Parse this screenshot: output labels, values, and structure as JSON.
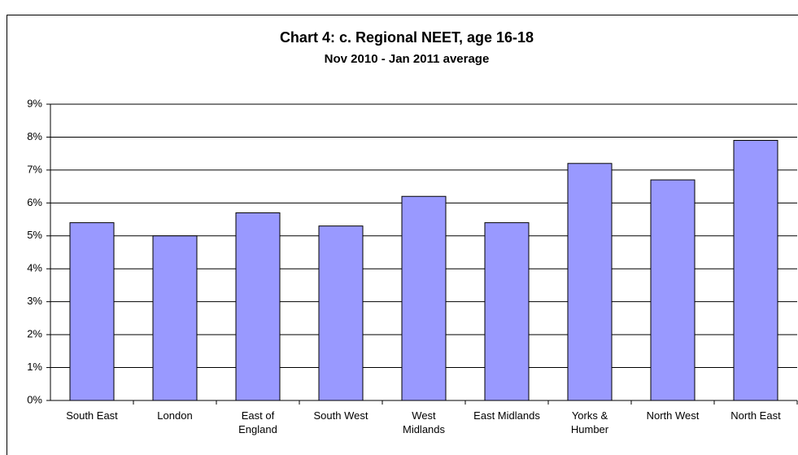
{
  "chart_data": {
    "type": "bar",
    "title": "Chart 4: c. Regional NEET, age 16-18",
    "subtitle": "Nov 2010 - Jan 2011 average",
    "categories": [
      "South East",
      "London",
      "East of England",
      "South West",
      "West Midlands",
      "East Midlands",
      "Yorks & Humber",
      "North West",
      "North East"
    ],
    "values": [
      5.4,
      5.0,
      5.7,
      5.3,
      6.2,
      5.4,
      7.2,
      6.7,
      7.9
    ],
    "color": "#9999ff",
    "ylim": [
      0,
      9
    ],
    "yticks": [
      {
        "value": 0,
        "label": "0%"
      },
      {
        "value": 1,
        "label": "1%"
      },
      {
        "value": 2,
        "label": "2%"
      },
      {
        "value": 3,
        "label": "3%"
      },
      {
        "value": 4,
        "label": "4%"
      },
      {
        "value": 5,
        "label": "5%"
      },
      {
        "value": 6,
        "label": "6%"
      },
      {
        "value": 7,
        "label": "7%"
      },
      {
        "value": 8,
        "label": "8%"
      },
      {
        "value": 9,
        "label": "9%"
      }
    ],
    "grid": true
  }
}
